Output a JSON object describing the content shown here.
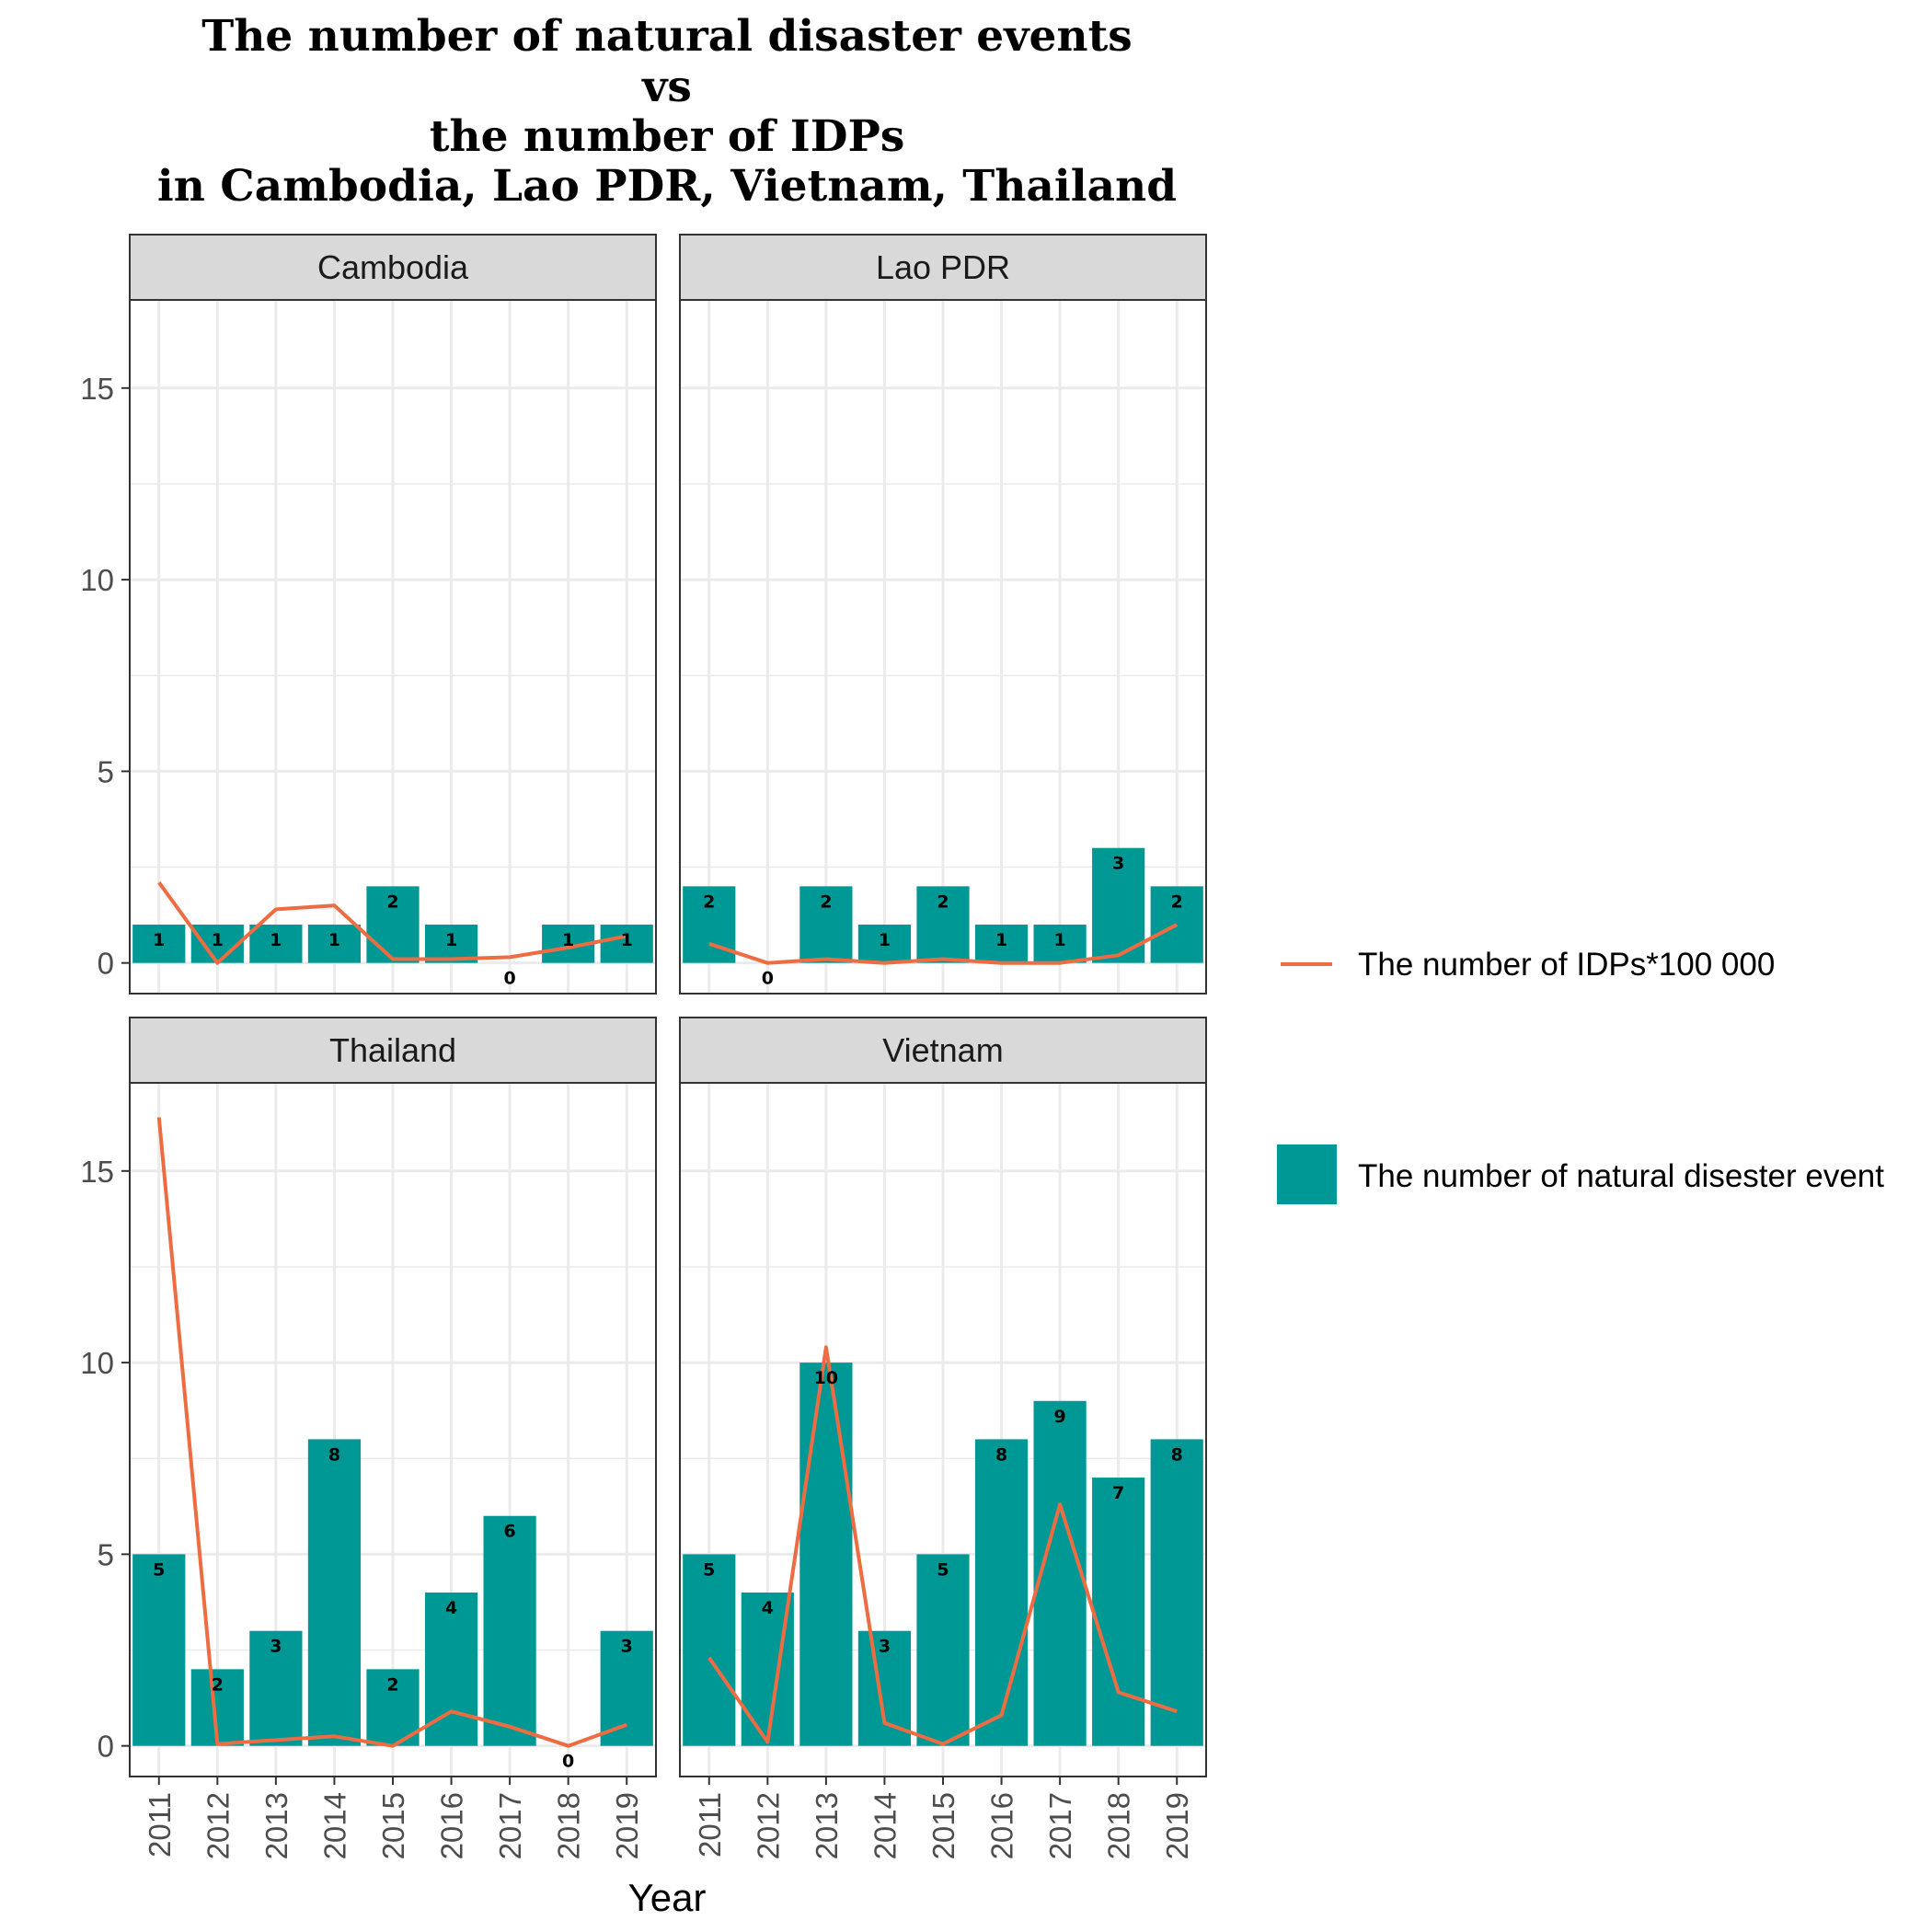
{
  "chart_data": {
    "type": "bar",
    "title_lines": [
      "The number of natural disaster events",
      "vs",
      "the number of IDPs",
      "in Cambodia, Lao PDR, Vietnam, Thailand"
    ],
    "xlabel": "Year",
    "ylabel": "",
    "ylim": [
      -0.8,
      17.3
    ],
    "yticks": [
      0,
      5,
      10,
      15
    ],
    "categories": [
      "2011",
      "2012",
      "2013",
      "2014",
      "2015",
      "2016",
      "2017",
      "2018",
      "2019"
    ],
    "colors": {
      "bars": "#009895",
      "line": "#ee6c42",
      "strip_bg": "#d9d9d9",
      "grid": "#ebebeb"
    },
    "legend": {
      "position": "right",
      "line_label": "The number of IDPs*100 000",
      "bar_label": "The number of natural disester event"
    },
    "panels": [
      {
        "name": "Cambodia",
        "events": [
          1,
          1,
          1,
          1,
          2,
          1,
          0,
          1,
          1
        ],
        "idps": [
          2.1,
          0.0,
          1.4,
          1.5,
          0.1,
          0.1,
          0.15,
          0.4,
          0.7
        ]
      },
      {
        "name": "Lao PDR",
        "events": [
          2,
          0,
          2,
          1,
          2,
          1,
          1,
          3,
          2
        ],
        "idps": [
          0.5,
          0.0,
          0.1,
          0.0,
          0.1,
          0.0,
          0.0,
          0.2,
          1.0
        ]
      },
      {
        "name": "Thailand",
        "events": [
          5,
          2,
          3,
          8,
          2,
          4,
          6,
          0,
          3
        ],
        "idps": [
          16.4,
          0.05,
          0.15,
          0.25,
          0.0,
          0.9,
          0.5,
          0.0,
          0.55
        ]
      },
      {
        "name": "Vietnam",
        "events": [
          5,
          4,
          10,
          3,
          5,
          8,
          9,
          7,
          8
        ],
        "idps": [
          2.3,
          0.1,
          10.4,
          0.6,
          0.05,
          0.8,
          6.3,
          1.4,
          0.9
        ]
      }
    ]
  }
}
